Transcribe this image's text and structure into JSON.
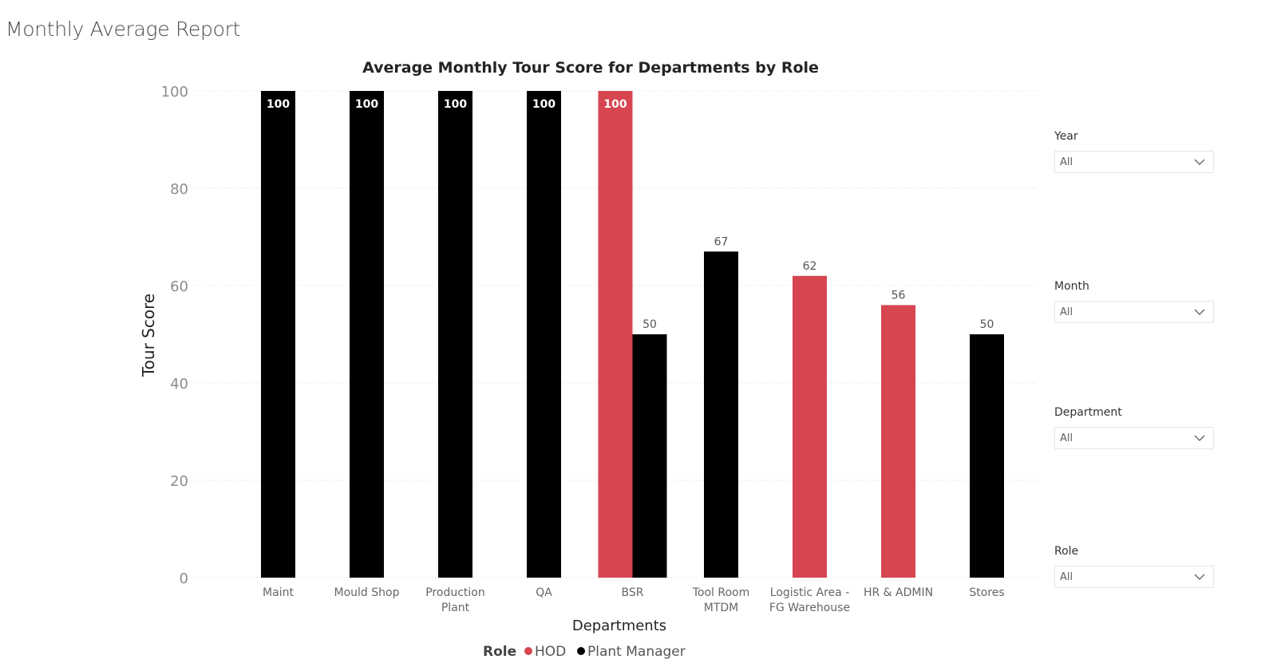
{
  "page": {
    "title": "Monthly Average Report"
  },
  "chart_data": {
    "type": "bar",
    "title": "Average Monthly Tour Score for Departments by Role",
    "xlabel": "Departments",
    "ylabel": "Tour Score",
    "ylim": [
      0,
      100
    ],
    "yticks": [
      0,
      20,
      40,
      60,
      80,
      100
    ],
    "grid": true,
    "legend": {
      "title": "Role",
      "placement": "bottom-center"
    },
    "categories": [
      [
        "Maint"
      ],
      [
        "Mould Shop"
      ],
      [
        "Production",
        "Plant"
      ],
      [
        "QA"
      ],
      [
        "BSR"
      ],
      [
        "Tool Room",
        "MTDM"
      ],
      [
        "Logistic Area -",
        "FG Warehouse"
      ],
      [
        "HR & ADMIN"
      ],
      [
        "Stores"
      ]
    ],
    "series": [
      {
        "name": "HOD",
        "color": "#d64550",
        "values": [
          null,
          null,
          null,
          null,
          100,
          null,
          62,
          56,
          null
        ],
        "labels": [
          "",
          "",
          "",
          "",
          "100",
          "",
          "62",
          "56",
          ""
        ]
      },
      {
        "name": "Plant Manager",
        "color": "#000000",
        "values": [
          100,
          100,
          100,
          100,
          50,
          67,
          null,
          null,
          50
        ],
        "labels": [
          "100",
          "100",
          "100",
          "100",
          "50",
          "67",
          "",
          "",
          "50"
        ]
      }
    ]
  },
  "slicers": [
    {
      "label": "Year",
      "value": "All"
    },
    {
      "label": "Month",
      "value": "All"
    },
    {
      "label": "Department",
      "value": "All"
    },
    {
      "label": "Role",
      "value": "All"
    }
  ]
}
